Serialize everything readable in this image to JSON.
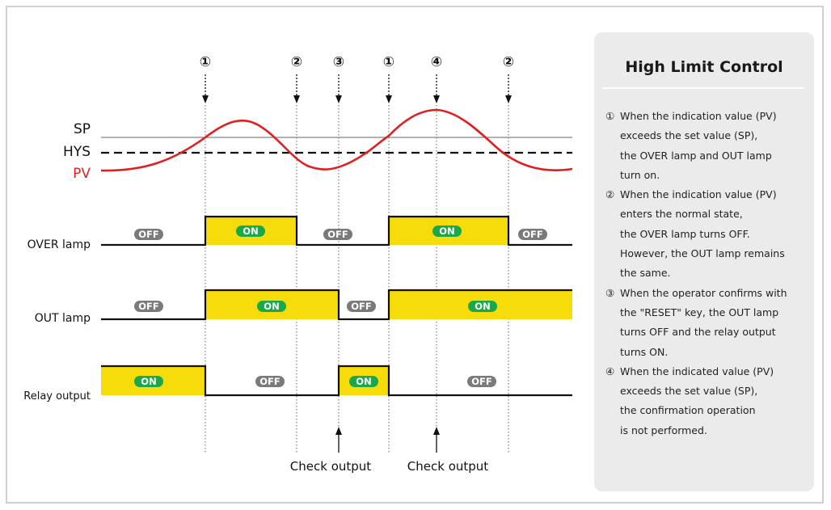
{
  "markers": {
    "top": [
      "①",
      "②",
      "③",
      "①",
      "④",
      "②"
    ],
    "bottom": [
      "Check output",
      "Check output"
    ]
  },
  "signal_labels": {
    "sp": "SP",
    "hys": "HYS",
    "pv": "PV"
  },
  "rows": [
    {
      "label": "OVER lamp",
      "badges": [
        "OFF",
        "ON",
        "OFF",
        "ON",
        "OFF"
      ]
    },
    {
      "label": "OUT lamp",
      "badges": [
        "OFF",
        "ON",
        "OFF",
        "ON"
      ]
    },
    {
      "label": "Relay output",
      "badges": [
        "ON",
        "OFF",
        "ON",
        "OFF"
      ]
    }
  ],
  "panel": {
    "title": "High Limit Control",
    "items": [
      {
        "num": "①",
        "text": "When the indication value (PV)\nexceeds the set value (SP),\nthe OVER lamp and OUT lamp\nturn on."
      },
      {
        "num": "②",
        "text": "When the indication value (PV)\nenters the normal state,\nthe OVER lamp turns OFF.\nHowever, the OUT lamp remains\nthe same."
      },
      {
        "num": "③",
        "text": "When the operator confirms with\nthe \"RESET\" key, the OUT lamp\nturns OFF and the relay output\nturns ON."
      },
      {
        "num": "④",
        "text": "When the indicated value (PV)\nexceeds the set value (SP),\nthe confirmation operation\nis not performed."
      }
    ]
  },
  "colors": {
    "pv_curve": "#e02020",
    "on_fill": "#f5dc0a",
    "on_badge": "#1aa84a",
    "off_badge": "#7a7a7a"
  }
}
